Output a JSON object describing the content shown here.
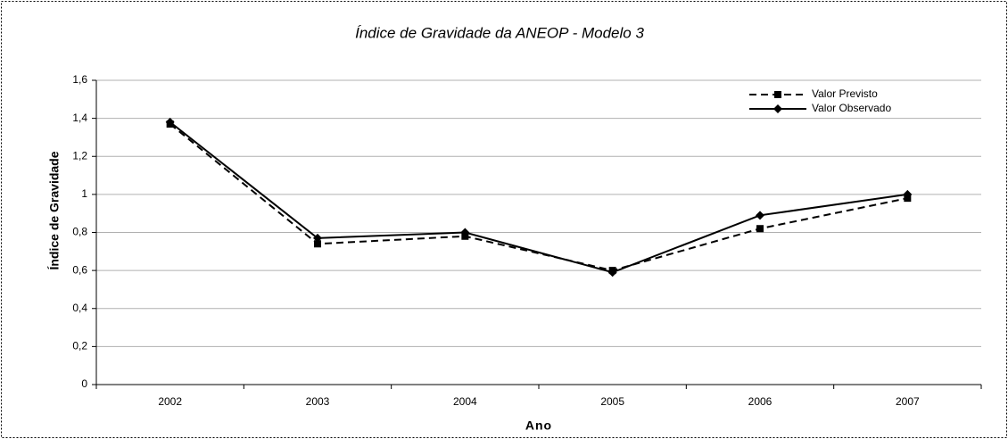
{
  "chart_data": {
    "type": "line",
    "title": "Índice de Gravidade da ANEOP - Modelo 3",
    "x_label": "Ano",
    "y_label": "Índice de Gravidade",
    "categories": [
      "2002",
      "2003",
      "2004",
      "2005",
      "2006",
      "2007"
    ],
    "series": [
      {
        "name": "Valor Previsto",
        "color": "#000000",
        "dashed": true,
        "marker": "square",
        "values": [
          1.37,
          0.74,
          0.78,
          0.6,
          0.82,
          0.98
        ]
      },
      {
        "name": "Valor Observado",
        "color": "#000000",
        "dashed": false,
        "marker": "diamond",
        "values": [
          1.38,
          0.77,
          0.8,
          0.59,
          0.89,
          1.0
        ]
      }
    ],
    "ylim": [
      0,
      1.6
    ],
    "yticks": [
      0,
      {
        "value": 0.2,
        "label": "0,2"
      },
      {
        "value": 0.4,
        "label": "0,4"
      },
      {
        "value": 0.6,
        "label": "0,6"
      },
      {
        "value": 0.8,
        "label": "0,8"
      },
      1,
      {
        "value": 1.2,
        "label": "1,2"
      },
      {
        "value": 1.4,
        "label": "1,4"
      },
      {
        "value": 1.6,
        "label": "1,6"
      }
    ],
    "grid": true,
    "legend": "top-right"
  }
}
